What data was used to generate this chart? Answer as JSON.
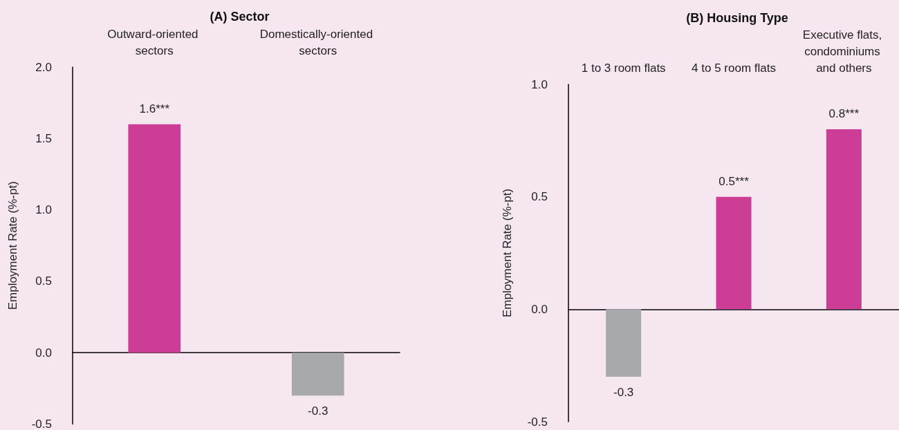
{
  "chart_data": [
    {
      "type": "bar",
      "title": "(A) Sector",
      "ylabel": "Employment Rate (%-pt)",
      "categories": [
        "Outward-oriented sectors",
        "Domestically-oriented sectors"
      ],
      "values": [
        1.6,
        -0.3
      ],
      "colors": [
        "#cc3d96",
        "#a7a9ac"
      ],
      "value_labels": [
        "1.6***",
        "-0.3"
      ],
      "ylim": [
        -0.5,
        2.0
      ],
      "yticks": [
        -0.5,
        {
          "value": 0,
          "label": "0.0"
        },
        0.5,
        {
          "value": 1,
          "label": "1.0"
        },
        1.5,
        {
          "value": 2,
          "label": "2.0"
        }
      ]
    },
    {
      "type": "bar",
      "title": "(B) Housing Type",
      "ylabel": "Employment Rate (%-pt)",
      "categories": [
        "1 to 3 room flats",
        "4 to 5 room flats",
        "Executive flats, condominiums and others"
      ],
      "values": [
        -0.3,
        0.5,
        0.8
      ],
      "colors": [
        "#a7a9ac",
        "#cc3d96",
        "#cc3d96"
      ],
      "value_labels": [
        "-0.3",
        "0.5***",
        "0.8***"
      ],
      "ylim": [
        -0.5,
        1.0
      ],
      "yticks": [
        -0.5,
        {
          "value": 0,
          "label": "0.0"
        },
        0.5,
        {
          "value": 1,
          "label": "1.0"
        }
      ]
    }
  ]
}
